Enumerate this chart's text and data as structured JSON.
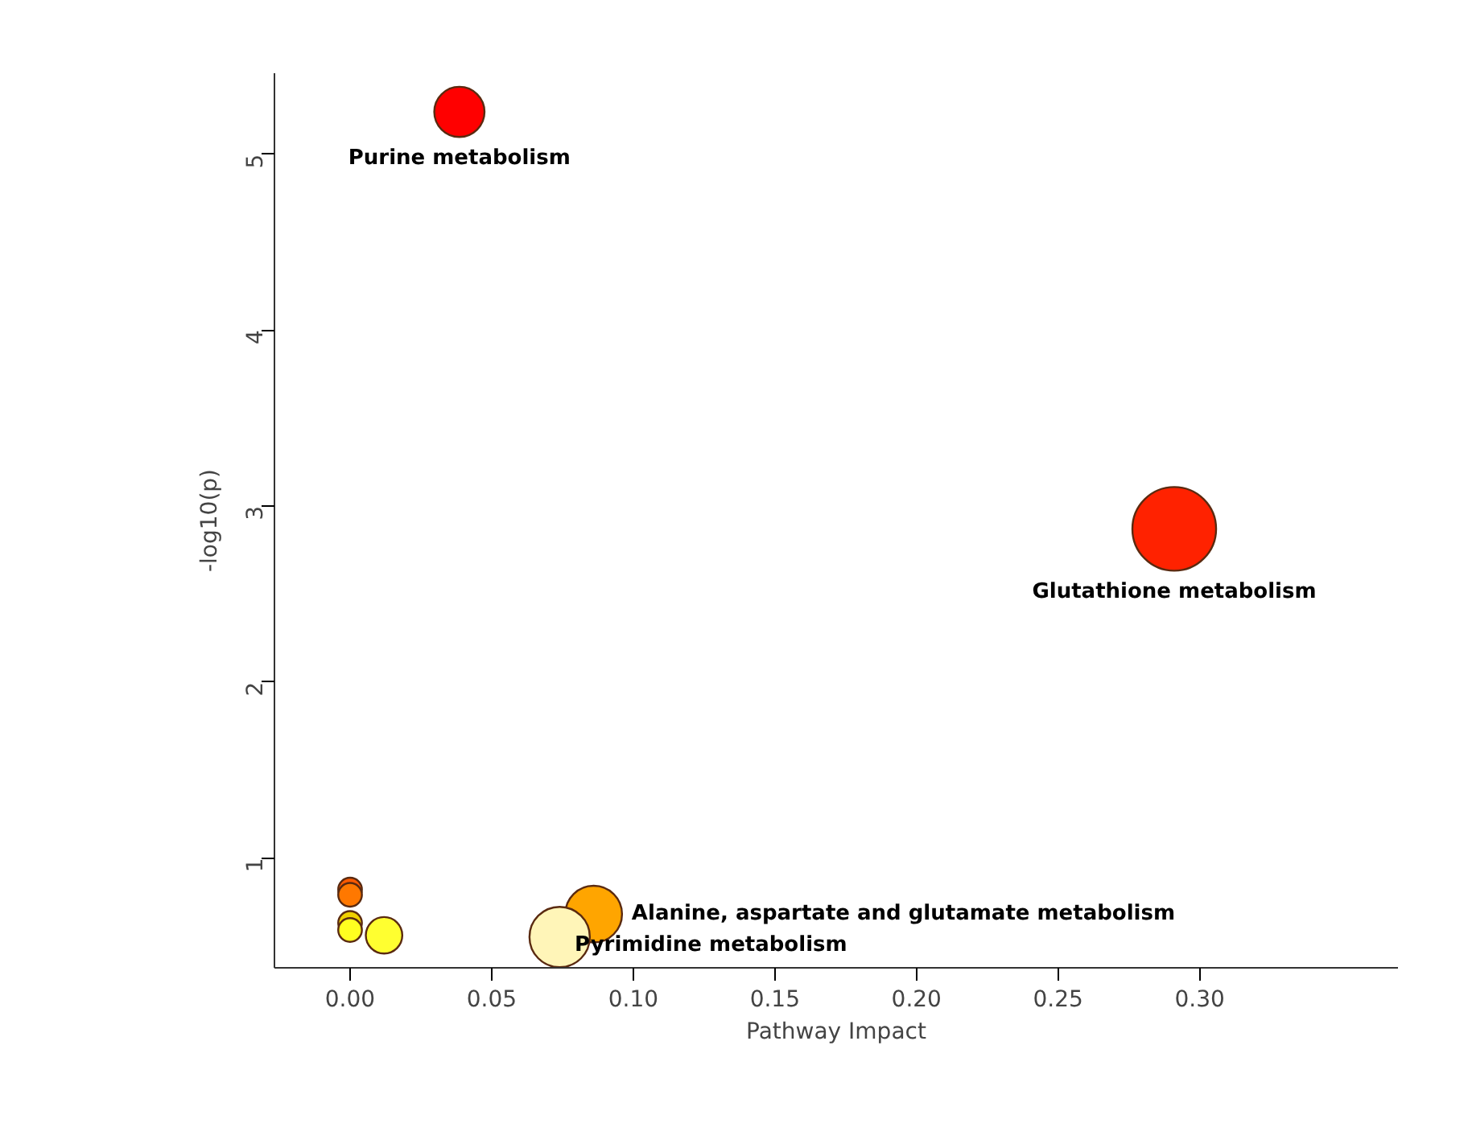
{
  "chart_data": {
    "type": "bubble",
    "xlabel": "Pathway Impact",
    "ylabel": "-log10(p)",
    "x": [
      0.0386,
      0.291,
      0.086,
      0.074,
      0.0,
      0.0,
      0.0,
      0.0,
      0.012
    ],
    "values": [
      5.24,
      2.87,
      0.68,
      0.55,
      0.82,
      0.79,
      0.63,
      0.59,
      0.56
    ],
    "sizes": [
      0.36,
      1,
      0.46,
      0.52,
      0.08,
      0.08,
      0.08,
      0.08,
      0.19
    ],
    "colors": [
      "#ff0000",
      "#ff2200",
      "#ffa500",
      "#fff5b8",
      "#ff5a00",
      "#ff7800",
      "#f0d000",
      "#ffff20",
      "#ffff30"
    ],
    "xlim": [
      -0.0267,
      0.37
    ],
    "ylim": [
      0.375,
      5.46
    ],
    "xticks": [
      {
        "value": 0,
        "label": "0.00"
      },
      {
        "value": 0.05,
        "label": "0.05"
      },
      {
        "value": 0.1,
        "label": "0.10"
      },
      {
        "value": 0.15,
        "label": "0.15"
      },
      {
        "value": 0.2,
        "label": "0.20"
      },
      {
        "value": 0.25,
        "label": "0.25"
      },
      {
        "value": 0.3,
        "label": "0.30"
      }
    ],
    "yticks": [
      1,
      2,
      3,
      4,
      5
    ],
    "grid": false,
    "marker": "circle",
    "annotations": [
      {
        "text": "Purine metabolism",
        "x": 0.0386,
        "y": 5.24
      },
      {
        "text": "Glutathione metabolism",
        "x": 0.291,
        "y": 2.87
      },
      {
        "text": "Alanine, aspartate and glutamate metabolism",
        "x": 0.086,
        "y": 0.68
      },
      {
        "text": "Pyrimidine metabolism",
        "x": 0.074,
        "y": 0.55
      }
    ]
  }
}
